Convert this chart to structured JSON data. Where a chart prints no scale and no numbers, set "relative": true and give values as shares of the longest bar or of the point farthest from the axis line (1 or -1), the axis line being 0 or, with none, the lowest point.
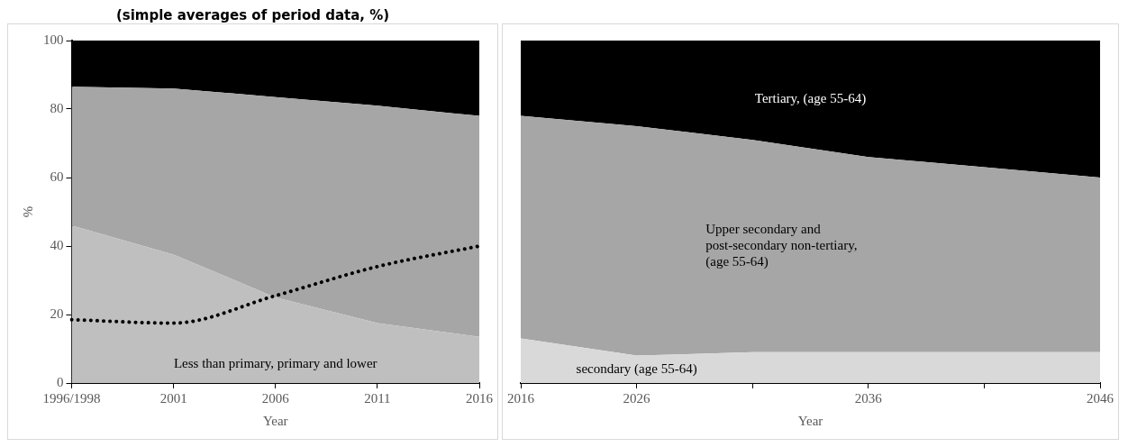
{
  "chart_data": [
    {
      "type": "area",
      "title": "(simple averages of period data, %)",
      "xlabel": "Year",
      "ylabel": "%",
      "categories": [
        "1996/1998",
        "2001",
        "2006",
        "2011",
        "2016"
      ],
      "stacked": true,
      "ylim": [
        0,
        100
      ],
      "yticks": [
        0,
        20,
        40,
        60,
        80,
        100
      ],
      "grid": false,
      "legend": false,
      "marker": "none",
      "series": [
        {
          "name": "Less than primary, primary and lower",
          "color": "#bfbfbf",
          "values": [
            46,
            37.5,
            25,
            17.5,
            13.5
          ]
        },
        {
          "color": "#a6a6a6",
          "values": [
            40.5,
            48.5,
            58.5,
            63.5,
            64.5
          ]
        },
        {
          "color": "#000000",
          "values": [
            13.5,
            14,
            16.5,
            19,
            22
          ]
        },
        {
          "type": "line",
          "color": "#000000",
          "line_style": "dotted",
          "values": [
            18.5,
            17.5,
            25.5,
            34,
            40
          ]
        }
      ]
    },
    {
      "type": "area",
      "xlabel": "Year",
      "categories": [
        "2016",
        "2026",
        null,
        "2036",
        null,
        "2046"
      ],
      "stacked": true,
      "relative": true,
      "tick_labels": "x",
      "grid": false,
      "legend": false,
      "marker": "none",
      "series": [
        {
          "name": "secondary (age 55-64)",
          "color": "#d9d9d9",
          "values": [
            0.13,
            0.08,
            0.09,
            0.09,
            0.09,
            0.09
          ]
        },
        {
          "name": "Upper secondary and\npost-secondary non-tertiary,\n(age 55-64)",
          "color": "#a6a6a6",
          "values": [
            0.65,
            0.67,
            0.62,
            0.57,
            0.54,
            0.51
          ]
        },
        {
          "name": "Tertiary, (age 55-64)",
          "color": "#000000",
          "values": [
            0.22,
            0.25,
            0.29,
            0.34,
            0.37,
            0.4
          ]
        }
      ]
    }
  ]
}
